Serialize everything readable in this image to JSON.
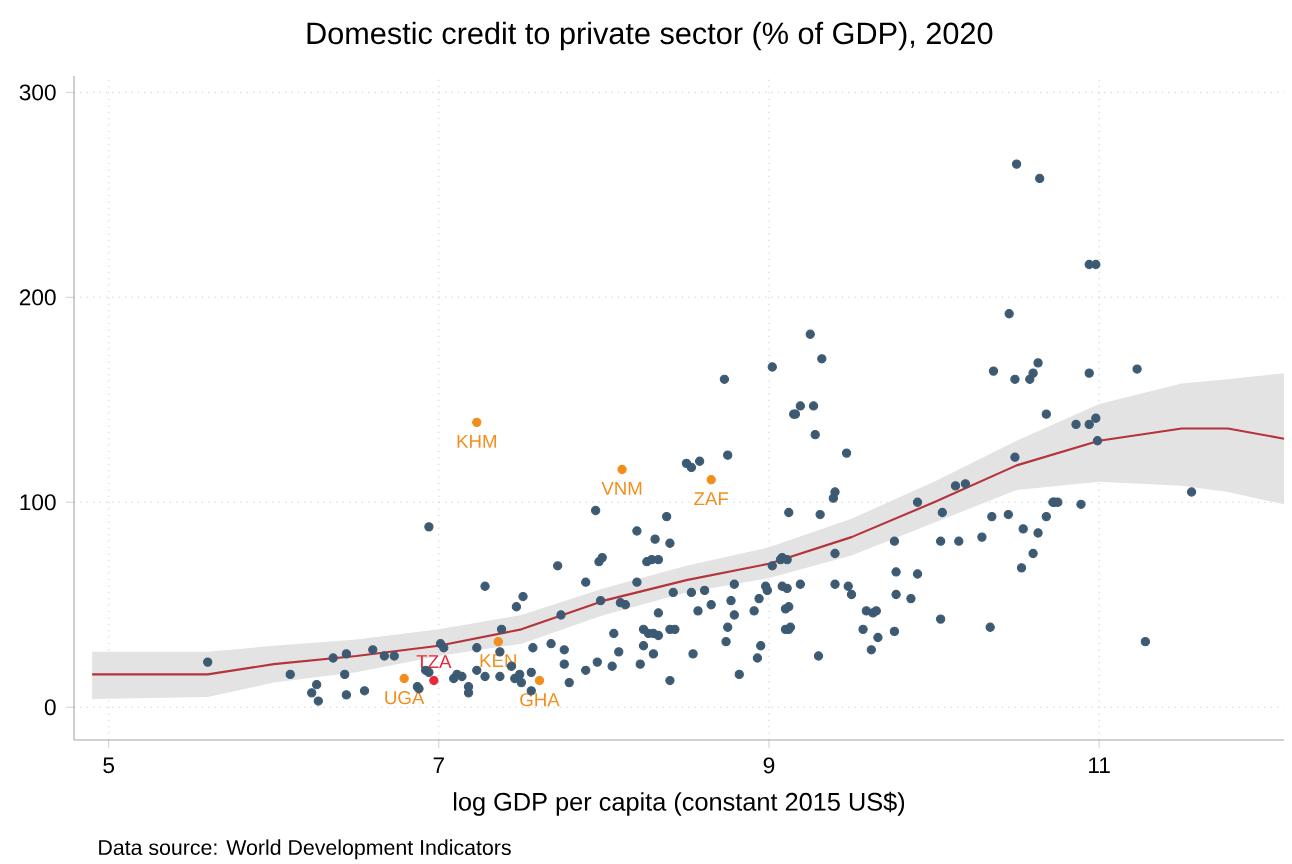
{
  "chart_data": {
    "type": "scatter",
    "title": "Domestic credit to private sector (% of GDP), 2020",
    "xlabel": "log GDP per capita (constant 2015 US$)",
    "xlim": [
      4.79,
      12.12
    ],
    "ylim": [
      -16,
      308
    ],
    "xticks": [
      5,
      7,
      9,
      11
    ],
    "yticks": [
      0,
      100,
      200,
      300
    ],
    "grid": true,
    "series": [
      {
        "color": "#3d5a73",
        "x": [
          5.6,
          6.1,
          6.26,
          6.23,
          6.27,
          6.36,
          6.44,
          6.43,
          6.44,
          6.55,
          6.6,
          6.67,
          6.73,
          6.87,
          6.92,
          6.94,
          9.02,
          8.73,
          9.15,
          8.5,
          8.53,
          8.58,
          8.75,
          7.95,
          8.38,
          8.2,
          8.31,
          8.4,
          7.72,
          7.97,
          7.99,
          8.26,
          8.29,
          8.33,
          7.28,
          7.51,
          7.47,
          7.89,
          8.2,
          7.74,
          7.98,
          8.1,
          8.13,
          8.42,
          8.53,
          8.61,
          8.79,
          8.57,
          8.65,
          8.33,
          8.77,
          8.79,
          8.91,
          8.98,
          8.99,
          8.94,
          9.08,
          9.11,
          9.12,
          9.1,
          9.12,
          8.06,
          8.24,
          8.27,
          8.3,
          8.33,
          8.4,
          8.43,
          8.75,
          8.74,
          8.95,
          8.09,
          7.96,
          8.24,
          8.3,
          7.76,
          7.57,
          7.68,
          7.76,
          8.22,
          8.05,
          7.89,
          8.54,
          8.4,
          8.82,
          8.93,
          7.23,
          7.37,
          7.01,
          7.03,
          7.38,
          7.23,
          7.28,
          7.37,
          7.44,
          7.49,
          7.56,
          7.46,
          7.5,
          7.56,
          7.79,
          7.09,
          7.11,
          7.14,
          7.18,
          7.18,
          6.88,
          6.94,
          9.25,
          9.32,
          9.16,
          9.19,
          9.27,
          9.28,
          9.47,
          9.4,
          9.39,
          9.31,
          9.9,
          10.13,
          10.19,
          10.05,
          10.36,
          10.455,
          10.49,
          10.58,
          10.6,
          10.63,
          10.68,
          10.49,
          10.73,
          9.07,
          9.02,
          9.4,
          9.76,
          9.11,
          9.19,
          9.08,
          9.4,
          9.48,
          9.5,
          9.12,
          9.1,
          9.13,
          9.59,
          9.63,
          9.65,
          9.57,
          9.66,
          9.62,
          9.76,
          9.77,
          9.77,
          9.86,
          9.9,
          10.04,
          10.15,
          10.29,
          10.35,
          10.45,
          10.04,
          10.34,
          9.3,
          10.54,
          10.53,
          10.6,
          10.63,
          10.68,
          10.5,
          10.64,
          10.94,
          10.98,
          10.94,
          11.23,
          10.86,
          10.94,
          10.98,
          10.99,
          10.72,
          10.75,
          10.89,
          11.56,
          11.28
        ],
        "values": [
          22,
          16,
          11,
          7,
          3,
          24,
          26,
          16,
          6,
          8,
          28,
          25,
          25,
          10,
          18,
          88,
          166,
          160,
          143,
          119,
          117,
          120,
          123,
          96,
          93,
          86,
          82,
          80,
          69,
          71,
          73,
          71,
          72,
          72,
          59,
          54,
          49,
          61,
          61,
          45,
          52,
          51,
          50,
          56,
          56,
          57,
          60,
          47,
          50,
          46,
          52,
          45,
          47,
          59,
          57,
          53,
          73,
          72,
          95,
          48,
          38,
          36,
          38,
          36,
          36,
          35,
          38,
          38,
          39,
          32,
          30,
          27,
          22,
          30,
          26,
          28,
          29,
          31,
          21,
          21,
          20,
          18,
          26,
          13,
          16,
          24,
          29,
          27,
          31,
          29,
          38,
          18,
          15,
          15,
          20,
          16,
          17,
          14,
          12,
          8,
          12,
          14,
          16,
          15,
          10,
          7,
          9,
          17,
          182,
          170,
          143,
          147,
          147,
          133,
          124,
          105,
          102,
          94,
          100,
          108,
          109,
          95,
          164,
          192,
          160,
          160,
          163,
          168,
          143,
          122,
          100,
          72,
          69,
          75,
          81,
          58,
          60,
          59,
          60,
          59,
          55,
          49,
          38,
          39,
          47,
          46,
          47,
          38,
          34,
          28,
          37,
          66,
          55,
          53,
          65,
          81,
          81,
          83,
          93,
          94,
          43,
          39,
          25,
          87,
          68,
          75,
          85,
          93,
          265,
          258,
          216,
          216,
          163,
          165,
          138,
          138,
          141,
          130,
          100,
          100,
          99,
          105,
          32
        ],
        "marker": "circle"
      },
      {
        "color": "#f28e1c",
        "x": [
          7.23,
          8.11,
          8.65,
          7.36,
          6.79,
          7.61
        ],
        "values": [
          139,
          116,
          111,
          32,
          14,
          13
        ],
        "marker": "circle"
      },
      {
        "color": "#e8283a",
        "x": [
          6.97
        ],
        "values": [
          13
        ],
        "marker": "circle"
      },
      {
        "type": "line",
        "color": "#b5333a",
        "marker": "none",
        "x": [
          4.9,
          5.6,
          6.0,
          6.5,
          7.0,
          7.5,
          8.0,
          8.5,
          9.0,
          9.5,
          10.0,
          10.5,
          11.0,
          11.5,
          11.78,
          12.12
        ],
        "values": [
          16,
          16,
          21,
          25,
          30,
          38,
          52,
          62,
          70,
          83,
          100,
          118,
          130,
          136,
          136,
          131
        ],
        "lower": [
          4,
          5,
          12,
          17,
          25,
          31,
          45,
          56,
          63,
          74,
          90,
          106,
          110,
          108,
          105,
          99
        ],
        "upper": [
          27,
          27,
          30,
          33,
          38,
          45,
          58,
          69,
          78,
          92,
          110,
          130,
          148,
          158,
          160,
          163
        ]
      }
    ],
    "annotations": [
      {
        "text": "KHM",
        "x": 7.23,
        "y": 139
      },
      {
        "text": "VNM",
        "x": 8.11,
        "y": 116
      },
      {
        "text": "ZAF",
        "x": 8.65,
        "y": 111
      },
      {
        "text": "KEN",
        "x": 7.36,
        "y": 32
      },
      {
        "text": "UGA",
        "x": 6.79,
        "y": 14
      },
      {
        "text": "TZA",
        "x": 6.97,
        "y": 13
      },
      {
        "text": "GHA",
        "x": 7.61,
        "y": 13
      },
      "Data source: World Development Indicators"
    ]
  }
}
